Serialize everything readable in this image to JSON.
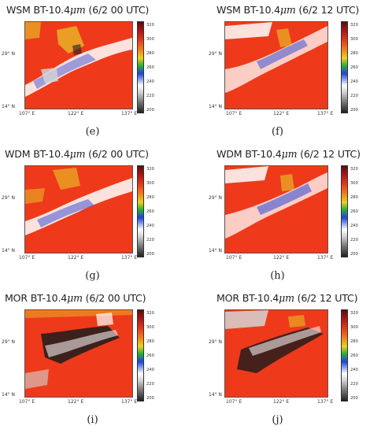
{
  "panels": [
    {
      "title_prefix": "WSM BT-10.4",
      "unit": "μm",
      "title_suffix": " (6/2 00 UTC)",
      "caption": "(e)"
    },
    {
      "title_prefix": "WSM BT-10.4",
      "unit": "μm",
      "title_suffix": " (6/2 12 UTC)",
      "caption": "(f)"
    },
    {
      "title_prefix": "WDM BT-10.4",
      "unit": "μm",
      "title_suffix": " (6/2 00 UTC)",
      "caption": "(g)"
    },
    {
      "title_prefix": "WDM BT-10.4",
      "unit": "μm",
      "title_suffix": " (6/2 12 UTC)",
      "caption": "(h)"
    },
    {
      "title_prefix": "MOR BT-10.4",
      "unit": "μm",
      "title_suffix": " (6/2 00 UTC)",
      "caption": "(i)"
    },
    {
      "title_prefix": "MOR BT-10.4",
      "unit": "μm",
      "title_suffix": " (6/2 12 UTC)",
      "caption": "(j)"
    }
  ],
  "axes": {
    "lat_labels": [
      "29° N",
      "14° N"
    ],
    "lon_labels": [
      "107° E",
      "122° E",
      "137° E"
    ]
  },
  "colorbar": {
    "ticks": [
      "320",
      "300",
      "280",
      "260",
      "240",
      "220",
      "200"
    ]
  },
  "colors": {
    "warm": "#ee3a1a",
    "cloud": "#ffffff",
    "cold": "#1c1c1c",
    "mid": "#2b48d8"
  }
}
